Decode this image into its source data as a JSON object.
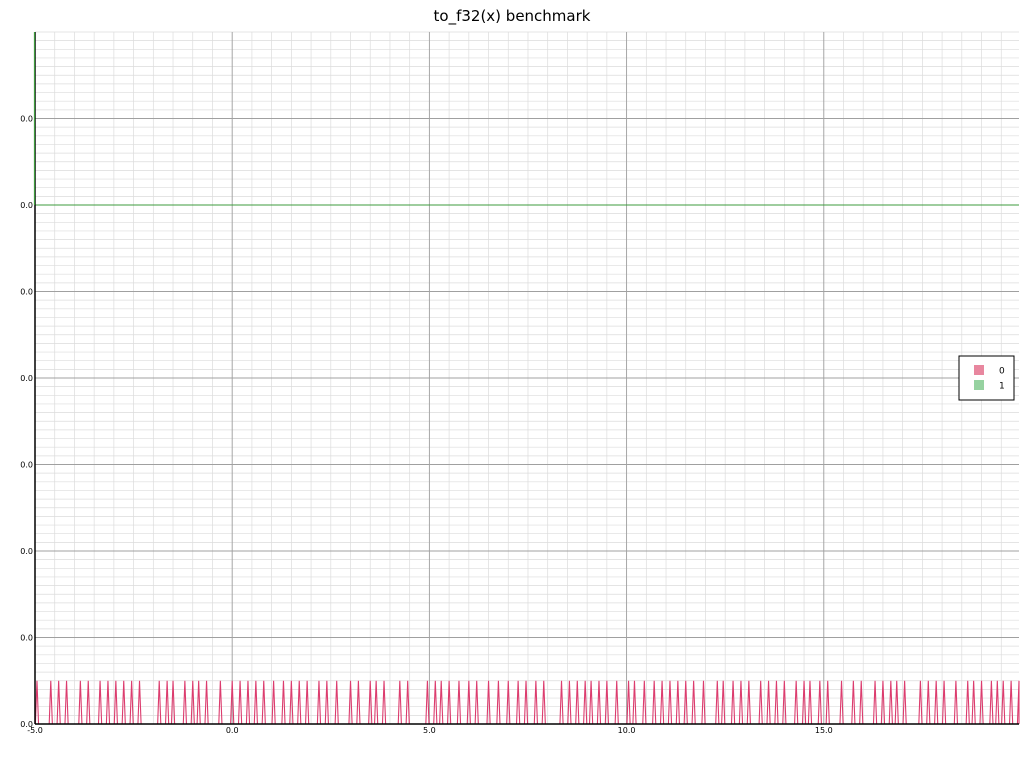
{
  "chart_data": {
    "type": "line",
    "title": "to_f32(x) benchmark",
    "xlabel": "",
    "ylabel": "",
    "xlim": [
      -5.0,
      19.95
    ],
    "ylim": [
      0.0,
      8e-06
    ],
    "x_tick_labels": [
      "-5.0",
      "0.0",
      "5.0",
      "10.0",
      "15.0"
    ],
    "x_tick_values": [
      -5.0,
      0.0,
      5.0,
      10.0,
      15.0
    ],
    "y_tick_labels": [
      "0.0",
      "0.0",
      "0.0",
      "0.0",
      "0.0",
      "0.0",
      "0.0",
      "0.0"
    ],
    "y_tick_values": [
      0.0,
      1e-06,
      2e-06,
      3e-06,
      4e-06,
      5e-06,
      6e-06,
      7e-06
    ],
    "grid": true,
    "legend_position": "right",
    "series": [
      {
        "name": "0",
        "color": "#dc3c6e",
        "legend_color": "#e8879f",
        "baseline": 0.0,
        "spike_value": 5e-07,
        "spike_x": [
          -4.95,
          -4.6,
          -4.4,
          -4.2,
          -3.85,
          -3.65,
          -3.35,
          -3.15,
          -2.95,
          -2.75,
          -2.55,
          -2.35,
          -1.85,
          -1.65,
          -1.5,
          -1.2,
          -1.0,
          -0.85,
          -0.65,
          -0.3,
          0.0,
          0.2,
          0.4,
          0.6,
          0.8,
          1.05,
          1.3,
          1.5,
          1.7,
          1.9,
          2.2,
          2.4,
          2.65,
          3.0,
          3.2,
          3.5,
          3.65,
          3.85,
          4.25,
          4.45,
          4.95,
          5.15,
          5.3,
          5.5,
          5.75,
          6.0,
          6.2,
          6.5,
          6.75,
          7.0,
          7.25,
          7.45,
          7.7,
          7.9,
          8.35,
          8.55,
          8.75,
          8.95,
          9.1,
          9.3,
          9.5,
          9.75,
          10.05,
          10.2,
          10.45,
          10.7,
          10.9,
          11.1,
          11.3,
          11.5,
          11.7,
          11.95,
          12.3,
          12.45,
          12.7,
          12.9,
          13.1,
          13.4,
          13.6,
          13.8,
          14.0,
          14.3,
          14.5,
          14.65,
          14.9,
          15.1,
          15.45,
          15.75,
          15.95,
          16.3,
          16.5,
          16.7,
          16.85,
          17.05,
          17.45,
          17.65,
          17.85,
          18.05,
          18.35,
          18.65,
          18.8,
          19.0,
          19.25,
          19.4,
          19.55,
          19.75,
          19.95
        ]
      },
      {
        "name": "1",
        "color": "#3c9b3c",
        "legend_color": "#96d2a0",
        "value": 6e-06
      }
    ]
  }
}
